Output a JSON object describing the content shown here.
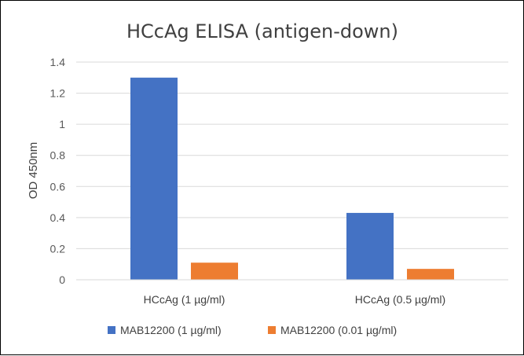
{
  "chart_data": {
    "type": "bar",
    "title": "HCcAg ELISA (antigen-down)",
    "xlabel": "",
    "ylabel": "OD 450nm",
    "ylim": [
      0,
      1.4
    ],
    "yticks": [
      "0",
      "0.2",
      "0.4",
      "0.6",
      "0.8",
      "1",
      "1.2",
      "1.4"
    ],
    "grid": true,
    "legend_position": "bottom",
    "categories": [
      "HCcAg (1 µg/ml)",
      "HCcAg (0.5 µg/ml)"
    ],
    "series": [
      {
        "name": "MAB12200 (1 µg/ml)",
        "color": "#4472C4",
        "values": [
          1.3,
          0.43
        ]
      },
      {
        "name": "MAB12200 (0.01 µg/ml)",
        "color": "#ED7D31",
        "values": [
          0.11,
          0.07
        ]
      }
    ]
  }
}
